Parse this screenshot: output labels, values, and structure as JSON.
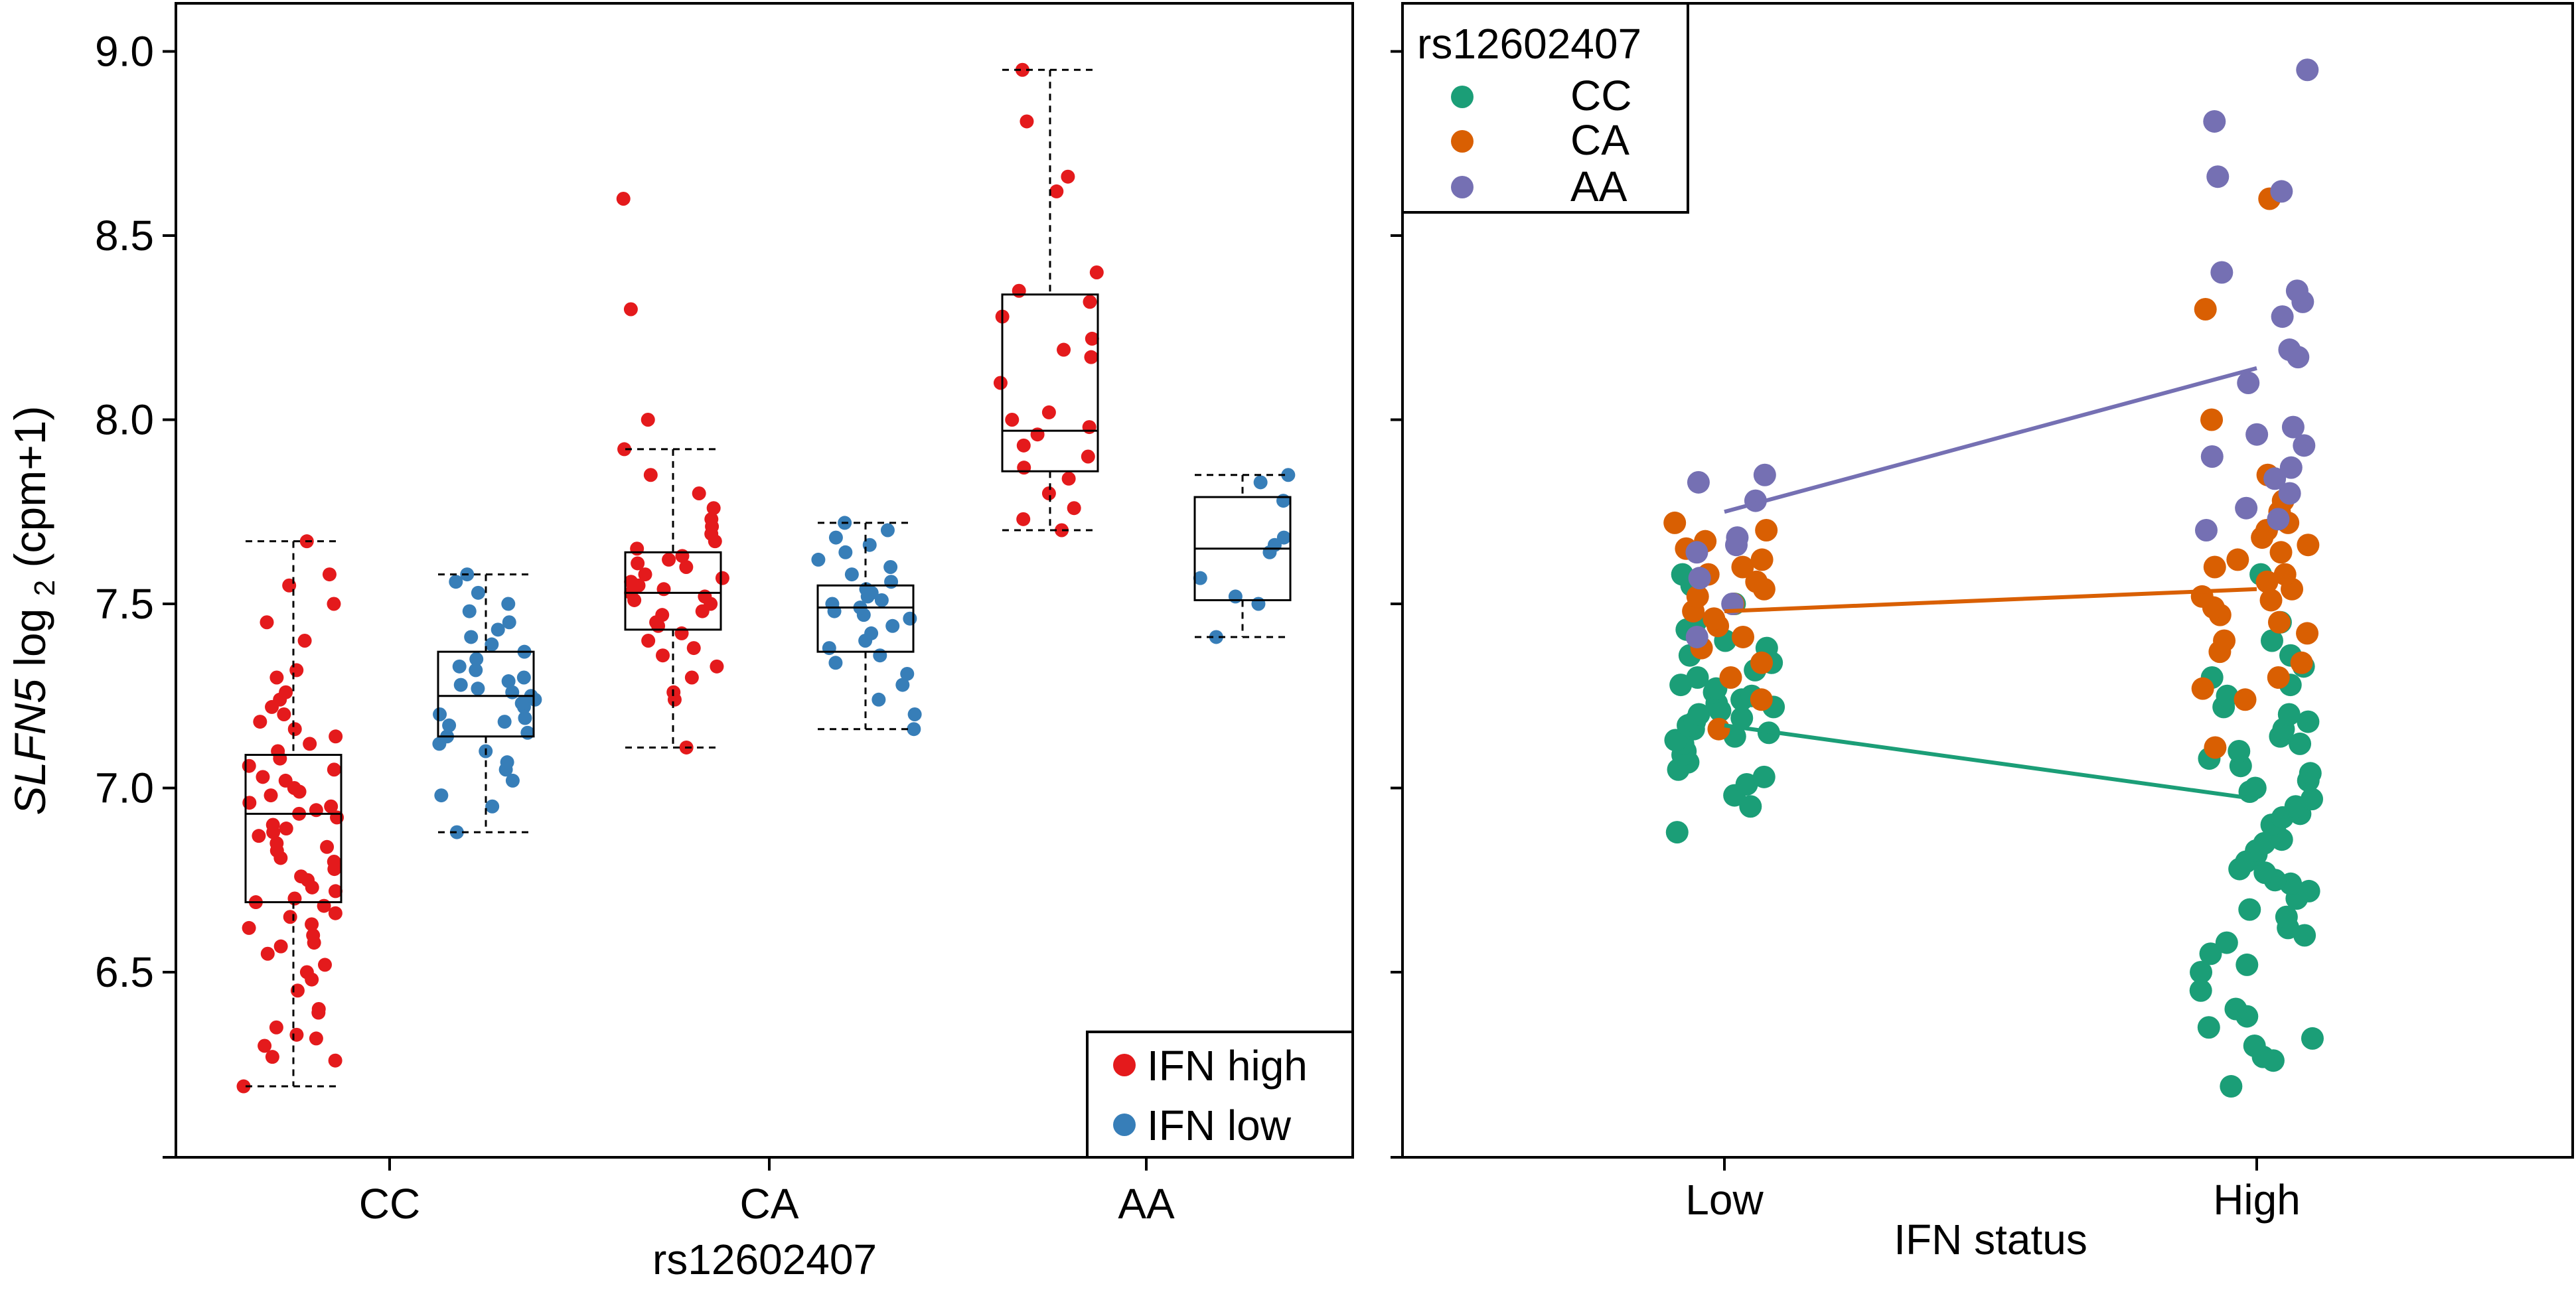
{
  "y_axis": {
    "label_gene": "SLFN5",
    "label_prefix": "log",
    "label_sub": "2",
    "label_suffix": "(cpm+1)",
    "ticks": [
      "6.5",
      "7.0",
      "7.5",
      "8.0",
      "8.5",
      "9.0"
    ]
  },
  "left_panel": {
    "xlabel": "rs12602407",
    "legend": [
      {
        "label": "IFN high",
        "color": "#e41a1c"
      },
      {
        "label": "IFN low",
        "color": "#377eb8"
      }
    ]
  },
  "right_panel": {
    "xlabel": "IFN status",
    "legend_title": "rs12602407",
    "legend": [
      {
        "label": "CC",
        "color": "#1b9e77"
      },
      {
        "label": "CA",
        "color": "#d95f02"
      },
      {
        "label": "AA",
        "color": "#7570b3"
      }
    ]
  },
  "chart_data": [
    {
      "type": "box",
      "xlabel": "rs12602407",
      "ylabel": "SLFN5 log2(cpm+1)",
      "ylim": [
        6.0,
        9.2
      ],
      "categories": [
        "CC",
        "CA",
        "AA"
      ],
      "series": [
        {
          "name": "IFN high",
          "color": "#e41a1c",
          "boxes": [
            {
              "category": "CC",
              "whisker_low": 6.19,
              "q1": 6.69,
              "median": 6.93,
              "q3": 7.09,
              "whisker_high": 7.67
            },
            {
              "category": "CA",
              "whisker_low": 7.11,
              "q1": 7.43,
              "median": 7.53,
              "q3": 7.64,
              "whisker_high": 7.92
            },
            {
              "category": "AA",
              "whisker_low": 7.7,
              "q1": 7.86,
              "median": 7.97,
              "q3": 8.34,
              "whisker_high": 8.95
            }
          ],
          "points": {
            "CC": [
              6.19,
              6.26,
              6.27,
              6.3,
              6.32,
              6.33,
              6.35,
              6.39,
              6.4,
              6.45,
              6.48,
              6.5,
              6.52,
              6.55,
              6.57,
              6.58,
              6.6,
              6.62,
              6.63,
              6.65,
              6.66,
              6.68,
              6.69,
              6.7,
              6.72,
              6.73,
              6.75,
              6.76,
              6.78,
              6.8,
              6.81,
              6.83,
              6.84,
              6.85,
              6.87,
              6.88,
              6.89,
              6.9,
              6.92,
              6.93,
              6.94,
              6.95,
              6.96,
              6.98,
              6.99,
              7.0,
              7.02,
              7.03,
              7.05,
              7.06,
              7.08,
              7.1,
              7.12,
              7.14,
              7.16,
              7.18,
              7.2,
              7.22,
              7.24,
              7.26,
              7.3,
              7.32,
              7.4,
              7.45,
              7.5,
              7.55,
              7.58,
              7.67
            ],
            "CA": [
              7.11,
              7.24,
              7.26,
              7.3,
              7.33,
              7.36,
              7.38,
              7.4,
              7.42,
              7.44,
              7.45,
              7.47,
              7.48,
              7.5,
              7.51,
              7.52,
              7.53,
              7.54,
              7.55,
              7.56,
              7.57,
              7.58,
              7.6,
              7.61,
              7.62,
              7.63,
              7.65,
              7.67,
              7.69,
              7.71,
              7.73,
              7.76,
              7.8,
              7.85,
              7.92,
              8.0,
              8.3,
              8.6
            ],
            "AA": [
              7.7,
              7.73,
              7.76,
              7.8,
              7.84,
              7.87,
              7.9,
              7.93,
              7.96,
              7.98,
              8.0,
              8.02,
              8.1,
              8.17,
              8.19,
              8.22,
              8.28,
              8.32,
              8.35,
              8.4,
              8.62,
              8.66,
              8.81,
              8.95
            ]
          }
        },
        {
          "name": "IFN low",
          "color": "#377eb8",
          "boxes": [
            {
              "category": "CC",
              "whisker_low": 6.88,
              "q1": 7.14,
              "median": 7.25,
              "q3": 7.37,
              "whisker_high": 7.58
            },
            {
              "category": "CA",
              "whisker_low": 7.16,
              "q1": 7.37,
              "median": 7.49,
              "q3": 7.55,
              "whisker_high": 7.72
            },
            {
              "category": "AA",
              "whisker_low": 7.41,
              "q1": 7.51,
              "median": 7.65,
              "q3": 7.79,
              "whisker_high": 7.85
            }
          ],
          "points": {
            "CC": [
              6.88,
              6.95,
              6.98,
              7.02,
              7.05,
              7.07,
              7.1,
              7.12,
              7.14,
              7.15,
              7.17,
              7.18,
              7.19,
              7.2,
              7.22,
              7.23,
              7.24,
              7.25,
              7.26,
              7.27,
              7.28,
              7.29,
              7.3,
              7.32,
              7.33,
              7.35,
              7.37,
              7.39,
              7.41,
              7.43,
              7.45,
              7.48,
              7.5,
              7.53,
              7.56,
              7.58
            ],
            "CA": [
              7.16,
              7.2,
              7.24,
              7.28,
              7.31,
              7.34,
              7.36,
              7.38,
              7.4,
              7.42,
              7.44,
              7.46,
              7.47,
              7.48,
              7.49,
              7.5,
              7.51,
              7.52,
              7.53,
              7.54,
              7.56,
              7.58,
              7.6,
              7.62,
              7.64,
              7.66,
              7.68,
              7.7,
              7.72
            ],
            "AA": [
              7.41,
              7.5,
              7.52,
              7.57,
              7.64,
              7.66,
              7.68,
              7.78,
              7.83,
              7.85
            ]
          }
        }
      ]
    },
    {
      "type": "scatter",
      "xlabel": "IFN status",
      "ylabel": "SLFN5 log2(cpm+1)",
      "ylim": [
        6.0,
        9.2
      ],
      "categories": [
        "Low",
        "High"
      ],
      "legend_title": "rs12602407",
      "series": [
        {
          "name": "CC",
          "color": "#1b9e77",
          "mean_line": [
            7.17,
            6.97
          ],
          "points": {
            "Low": [
              6.88,
              6.95,
              6.98,
              7.01,
              7.03,
              7.05,
              7.07,
              7.09,
              7.1,
              7.12,
              7.13,
              7.14,
              7.15,
              7.16,
              7.17,
              7.18,
              7.19,
              7.2,
              7.21,
              7.22,
              7.23,
              7.24,
              7.25,
              7.26,
              7.27,
              7.28,
              7.3,
              7.32,
              7.34,
              7.36,
              7.38,
              7.4,
              7.43,
              7.45,
              7.5,
              7.55,
              7.58
            ],
            "High": [
              6.19,
              6.26,
              6.27,
              6.3,
              6.32,
              6.35,
              6.38,
              6.4,
              6.45,
              6.5,
              6.52,
              6.55,
              6.58,
              6.6,
              6.62,
              6.65,
              6.67,
              6.7,
              6.72,
              6.74,
              6.75,
              6.77,
              6.78,
              6.8,
              6.82,
              6.83,
              6.85,
              6.86,
              6.88,
              6.9,
              6.92,
              6.93,
              6.95,
              6.97,
              6.99,
              7.0,
              7.02,
              7.04,
              7.06,
              7.08,
              7.1,
              7.12,
              7.14,
              7.16,
              7.18,
              7.2,
              7.22,
              7.25,
              7.28,
              7.3,
              7.33,
              7.36,
              7.4,
              7.45,
              7.58
            ]
          }
        },
        {
          "name": "CA",
          "color": "#d95f02",
          "mean_line": [
            7.48,
            7.54
          ],
          "points": {
            "Low": [
              7.16,
              7.24,
              7.3,
              7.34,
              7.38,
              7.41,
              7.44,
              7.46,
              7.48,
              7.5,
              7.52,
              7.54,
              7.56,
              7.58,
              7.6,
              7.62,
              7.65,
              7.67,
              7.7,
              7.72
            ],
            "High": [
              7.11,
              7.24,
              7.27,
              7.3,
              7.34,
              7.37,
              7.4,
              7.42,
              7.45,
              7.47,
              7.49,
              7.51,
              7.52,
              7.54,
              7.56,
              7.58,
              7.6,
              7.62,
              7.64,
              7.66,
              7.68,
              7.7,
              7.72,
              7.75,
              7.78,
              7.85,
              8.0,
              8.3,
              8.6
            ]
          }
        },
        {
          "name": "AA",
          "color": "#7570b3",
          "mean_line": [
            7.75,
            8.14
          ],
          "points": {
            "Low": [
              7.41,
              7.5,
              7.57,
              7.64,
              7.66,
              7.68,
              7.78,
              7.83,
              7.85
            ],
            "High": [
              7.7,
              7.73,
              7.76,
              7.8,
              7.84,
              7.87,
              7.9,
              7.93,
              7.96,
              7.98,
              8.1,
              8.17,
              8.19,
              8.28,
              8.32,
              8.35,
              8.4,
              8.62,
              8.66,
              8.81,
              8.95
            ]
          }
        }
      ]
    }
  ]
}
